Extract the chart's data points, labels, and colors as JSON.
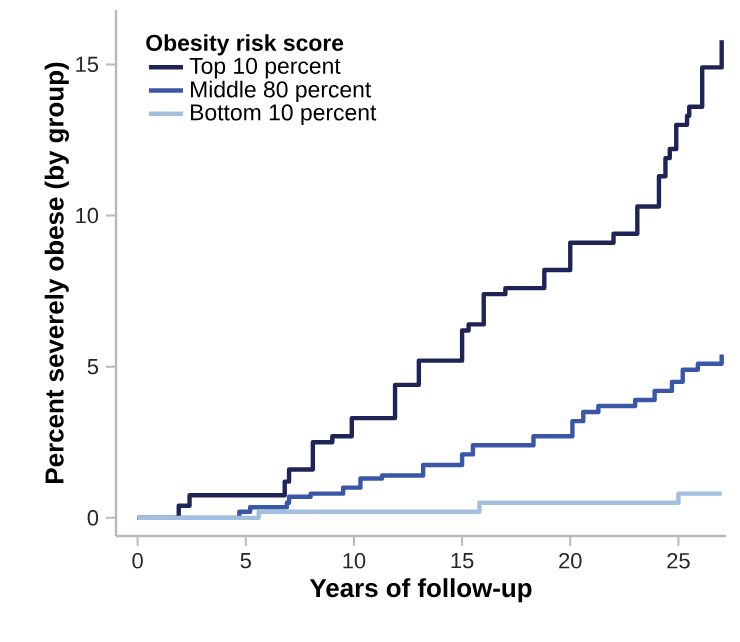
{
  "chart_data": {
    "type": "step",
    "xlabel": "Years of follow-up",
    "ylabel": "Percent severely obese (by group)",
    "legend_title": "Obesity risk score",
    "legend": "top left",
    "xlim": [
      -1,
      27.2
    ],
    "ylim": [
      -0.6,
      16.8
    ],
    "xticks": [
      0,
      5,
      10,
      15,
      20,
      25
    ],
    "yticks": [
      0,
      5,
      10,
      15
    ],
    "grid": false,
    "series": [
      {
        "name": "Top 10 percent",
        "color": "#1f2456",
        "x": [
          0,
          1.9,
          2.4,
          6.8,
          7.0,
          8.1,
          9.0,
          9.9,
          11.9,
          13.0,
          15.0,
          15.3,
          16.0,
          17.0,
          18.8,
          20.0,
          22.0,
          23.1,
          24.1,
          24.4,
          24.6,
          24.9,
          25.4,
          25.5,
          26.1,
          27.0
        ],
        "values": [
          0,
          0.4,
          0.75,
          1.2,
          1.6,
          2.5,
          2.7,
          3.3,
          4.4,
          5.2,
          6.2,
          6.4,
          7.4,
          7.6,
          8.2,
          9.1,
          9.4,
          10.3,
          11.3,
          11.9,
          12.2,
          13.0,
          13.3,
          13.6,
          14.9,
          15.8
        ]
      },
      {
        "name": "Middle 80 percent",
        "color": "#3a56a6",
        "x": [
          0,
          4.7,
          5.2,
          6.9,
          7.0,
          8.0,
          9.5,
          10.3,
          11.3,
          13.2,
          15.0,
          15.5,
          18.3,
          20.1,
          20.6,
          21.3,
          23.0,
          23.9,
          24.7,
          25.2,
          25.9,
          27.0
        ],
        "values": [
          0,
          0.2,
          0.35,
          0.5,
          0.7,
          0.8,
          1.0,
          1.3,
          1.4,
          1.75,
          2.1,
          2.4,
          2.7,
          3.2,
          3.5,
          3.7,
          3.9,
          4.2,
          4.5,
          4.9,
          5.1,
          5.4
        ]
      },
      {
        "name": "Bottom 10 percent",
        "color": "#a3bfdf",
        "x": [
          0,
          5.6,
          15.8,
          25.0,
          27.0
        ],
        "values": [
          0,
          0.2,
          0.5,
          0.8,
          0.8
        ]
      }
    ]
  }
}
